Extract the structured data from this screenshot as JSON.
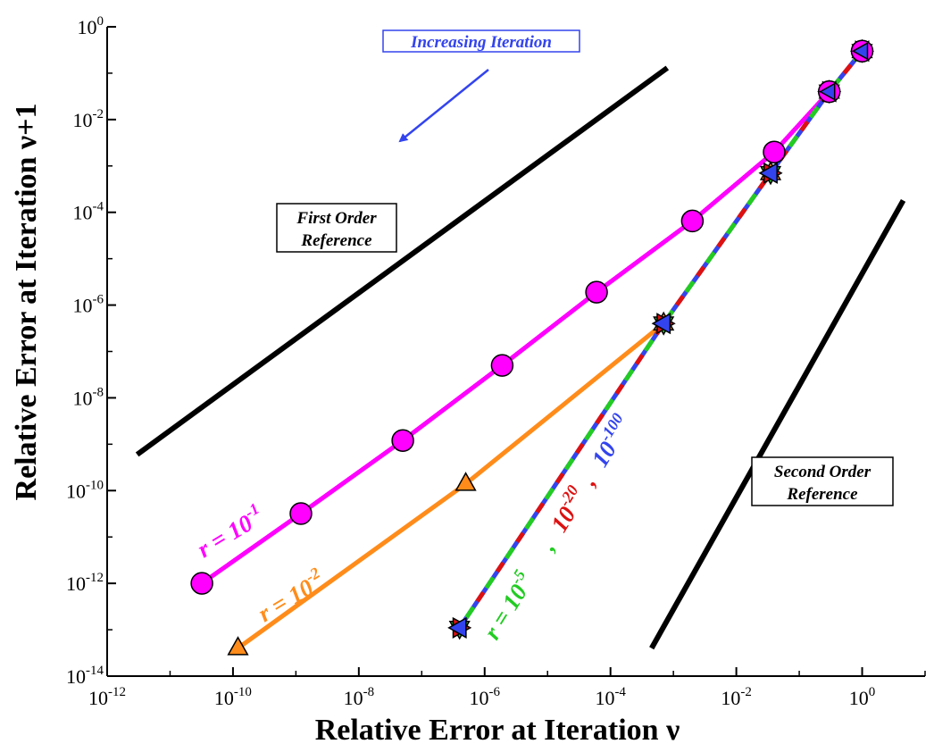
{
  "chart_data": {
    "type": "line",
    "title": "",
    "xlabel": "Relative Error at Iteration ν",
    "ylabel": "Relative Error at Iteration ν+1",
    "xscale": "log",
    "yscale": "log",
    "xlim": [
      1e-12,
      10.0
    ],
    "ylim": [
      1e-14,
      1
    ],
    "x_ticks": [
      {
        "mant": "10",
        "exp": "-12",
        "value": 1e-12
      },
      {
        "mant": "10",
        "exp": "-10",
        "value": 1e-10
      },
      {
        "mant": "10",
        "exp": "-8",
        "value": 1e-08
      },
      {
        "mant": "10",
        "exp": "-6",
        "value": 1e-06
      },
      {
        "mant": "10",
        "exp": "-4",
        "value": 0.0001
      },
      {
        "mant": "10",
        "exp": "-2",
        "value": 0.01
      },
      {
        "mant": "10",
        "exp": "0",
        "value": 1
      }
    ],
    "y_ticks": [
      {
        "mant": "10",
        "exp": "0",
        "value": 1
      },
      {
        "mant": "10",
        "exp": "-2",
        "value": 0.01
      },
      {
        "mant": "10",
        "exp": "-4",
        "value": 0.0001
      },
      {
        "mant": "10",
        "exp": "-6",
        "value": 1e-06
      },
      {
        "mant": "10",
        "exp": "-8",
        "value": 1e-08
      },
      {
        "mant": "10",
        "exp": "-10",
        "value": 1e-10
      },
      {
        "mant": "10",
        "exp": "-12",
        "value": 1e-12
      },
      {
        "mant": "10",
        "exp": "-14",
        "value": 1e-14
      }
    ],
    "series": [
      {
        "id": "r1",
        "color": "#ff00ff",
        "marker": "circle",
        "points": [
          [
            1,
            0.3
          ],
          [
            0.3,
            0.04
          ],
          [
            0.04,
            0.002
          ],
          [
            0.002,
            6.5e-05
          ],
          [
            6e-05,
            1.9e-06
          ],
          [
            1.9e-06,
            5e-08
          ],
          [
            5e-08,
            1.2e-09
          ],
          [
            1.2e-09,
            3.2e-11
          ],
          [
            3.2e-11,
            1e-12
          ]
        ]
      },
      {
        "id": "r2",
        "color": "#ff8c1a",
        "marker": "triangle",
        "points": [
          [
            1,
            0.3
          ],
          [
            0.3,
            0.04
          ],
          [
            0.035,
            0.0007
          ],
          [
            0.0007,
            4e-07
          ],
          [
            5e-07,
            1.4e-10
          ],
          [
            1.2e-10,
            4e-14
          ]
        ]
      },
      {
        "id": "r5",
        "color": "#22cc22",
        "marker": "triangle",
        "dashed": true,
        "points": [
          [
            1,
            0.3
          ],
          [
            0.3,
            0.04
          ],
          [
            0.035,
            0.0007
          ],
          [
            0.0007,
            4e-07
          ],
          [
            4e-07,
            1.1e-13
          ]
        ]
      },
      {
        "id": "r100",
        "color": "#3344ee",
        "marker": "triangle",
        "points": [
          [
            1,
            0.3
          ],
          [
            0.3,
            0.04
          ],
          [
            0.035,
            0.0007
          ],
          [
            0.0007,
            4e-07
          ],
          [
            4e-07,
            1.1e-13
          ]
        ]
      }
    ],
    "reference_lines": [
      {
        "id": "first-order",
        "color": "#000000",
        "points": [
          [
            3e-12,
            6e-10
          ],
          [
            0.0008,
            0.13
          ]
        ]
      },
      {
        "id": "second-order",
        "color": "#000000",
        "points": [
          [
            0.00045,
            4e-14
          ],
          [
            4.5,
            0.00018
          ]
        ]
      }
    ],
    "annotations": {
      "increasing_iteration": "Increasing Iteration",
      "first_order_line1": "First Order",
      "first_order_line2": "Reference",
      "second_order_line1": "Second Order",
      "second_order_line2": "Reference"
    },
    "series_labels": {
      "r1_prefix": "r = 10",
      "r1_exp": "-1",
      "r2_prefix": "r = 10",
      "r2_exp": "-2",
      "r5_prefix": "r = 10",
      "r5_exp": "-5",
      "comma1": ",",
      "r20_mant": "10",
      "r20_exp": "-20",
      "comma2": ",",
      "r100_mant": "10",
      "r100_exp": "-100"
    }
  }
}
